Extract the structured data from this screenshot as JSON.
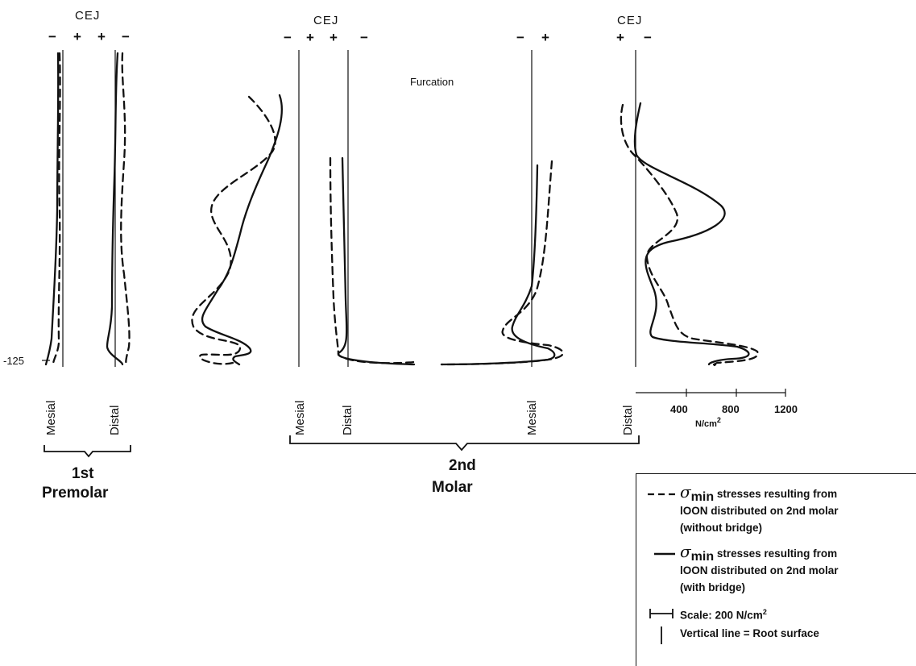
{
  "chart_data": {
    "type": "line",
    "title": "",
    "labels": {
      "cej": "CEJ",
      "furcation": "Furcation",
      "plus": "+",
      "minus": "−",
      "depth_tick": "-125",
      "mesial": "Mesial",
      "distal": "Distal"
    },
    "groups": [
      {
        "name_line1": "1st",
        "name_line2": "Premolar"
      },
      {
        "name_line1": "2nd",
        "name_line2": "Molar"
      }
    ],
    "stress_axis": {
      "ticks": [
        "400",
        "800",
        "1200"
      ],
      "unit": "N/cm",
      "unit_exp": "2",
      "range": [
        0,
        1200
      ]
    },
    "series": [
      {
        "name": "σmin without bridge",
        "style": "dashed"
      },
      {
        "name": "σmin with bridge",
        "style": "solid"
      }
    ],
    "roots": [
      {
        "root": "1st Premolar Mesial",
        "without_bridge": [
          [
            0,
            -2
          ],
          [
            25,
            -5
          ],
          [
            60,
            -6
          ],
          [
            95,
            -4
          ],
          [
            115,
            -8
          ],
          [
            118,
            -18
          ]
        ],
        "with_bridge": [
          [
            0,
            -3
          ],
          [
            25,
            -5
          ],
          [
            60,
            -8
          ],
          [
            95,
            -10
          ],
          [
            115,
            -12
          ],
          [
            118,
            -16
          ]
        ]
      },
      {
        "root": "1st Premolar Distal",
        "without_bridge": [
          [
            0,
            10
          ],
          [
            20,
            5
          ],
          [
            40,
            7
          ],
          [
            60,
            15
          ],
          [
            90,
            18
          ],
          [
            118,
            25
          ]
        ],
        "with_bridge": [
          [
            0,
            3
          ],
          [
            35,
            -2
          ],
          [
            70,
            -6
          ],
          [
            100,
            -8
          ],
          [
            118,
            10
          ]
        ]
      },
      {
        "root": "2nd Molar Mesial",
        "without_bridge": [
          [
            0,
            -640
          ],
          [
            20,
            -600
          ],
          [
            40,
            -780
          ],
          [
            60,
            -730
          ],
          [
            85,
            -975
          ],
          [
            110,
            -800
          ],
          [
            118,
            -940
          ]
        ],
        "with_bridge": [
          [
            0,
            -410
          ],
          [
            30,
            -520
          ],
          [
            70,
            -760
          ],
          [
            100,
            -860
          ],
          [
            112,
            -780
          ],
          [
            118,
            -870
          ]
        ]
      },
      {
        "root": "2nd Molar Distal",
        "without_bridge": [
          [
            0,
            -45
          ],
          [
            60,
            -35
          ],
          [
            100,
            -25
          ],
          [
            115,
            -10
          ],
          [
            120,
            160
          ]
        ],
        "with_bridge": [
          [
            0,
            -15
          ],
          [
            60,
            -20
          ],
          [
            100,
            -20
          ],
          [
            115,
            0
          ],
          [
            120,
            170
          ]
        ]
      },
      {
        "root": "2nd Molar Furcation Mesial",
        "without_bridge": [
          [
            0,
            50
          ],
          [
            30,
            40
          ],
          [
            60,
            20
          ],
          [
            90,
            -80
          ],
          [
            110,
            -60
          ],
          [
            118,
            80
          ]
        ],
        "with_bridge": [
          [
            0,
            15
          ],
          [
            40,
            10
          ],
          [
            70,
            -10
          ],
          [
            95,
            -50
          ],
          [
            112,
            50
          ],
          [
            119,
            -220
          ]
        ]
      },
      {
        "root": "2nd Molar Distal root",
        "without_bridge": [
          [
            0,
            -40
          ],
          [
            25,
            -20
          ],
          [
            40,
            340
          ],
          [
            55,
            40
          ],
          [
            85,
            310
          ],
          [
            110,
            1020
          ],
          [
            118,
            880
          ]
        ],
        "with_bridge": [
          [
            0,
            20
          ],
          [
            20,
            10
          ],
          [
            40,
            690
          ],
          [
            55,
            80
          ],
          [
            85,
            150
          ],
          [
            105,
            720
          ],
          [
            115,
            930
          ],
          [
            118,
            700
          ]
        ]
      }
    ]
  },
  "legend": {
    "dashed_line1": "stresses resulting from",
    "dashed_line2": "lOON distributed on 2nd molar",
    "dashed_line3": "(without bridge)",
    "solid_line1": "stresses resulting from",
    "solid_line2": "lOON distributed on 2nd molar",
    "solid_line3": "(with bridge)",
    "sigma": "σ",
    "sub": "min",
    "scale_text": "Scale: 200 N/cm",
    "scale_exp": "2",
    "root_text": "Vertical line = Root surface"
  }
}
